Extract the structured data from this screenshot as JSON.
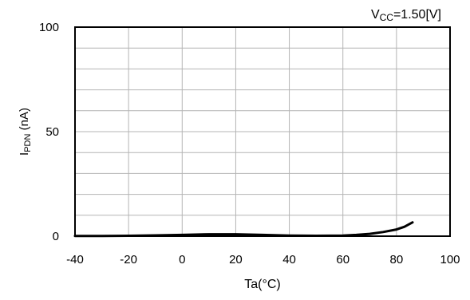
{
  "chart_data": {
    "type": "line",
    "annotation": {
      "main": "V",
      "sub": "CC",
      "rest": "=1.50[V]"
    },
    "ylabel": {
      "main": "I",
      "sub": "PDN",
      "rest": " (nA)"
    },
    "xlabel": "Ta(°C)",
    "xlim": [
      -40,
      100
    ],
    "ylim": [
      0,
      100
    ],
    "x_ticks": [
      -40,
      -20,
      0,
      20,
      40,
      60,
      80,
      100
    ],
    "x_tick_labels": [
      "-40",
      "-20",
      "0",
      "20",
      "40",
      "60",
      "80",
      "100"
    ],
    "y_tick_labels": [
      {
        "value": 0,
        "label": "0"
      },
      {
        "value": 50,
        "label": "50"
      },
      {
        "value": 100,
        "label": "100"
      }
    ],
    "y_grid": [
      10,
      20,
      30,
      40,
      50,
      60,
      70,
      80,
      90
    ],
    "grid": true,
    "series": [
      {
        "color": "#000000",
        "x": [
          -40,
          -30,
          -20,
          -10,
          0,
          10,
          20,
          30,
          40,
          50,
          60,
          65,
          70,
          75,
          80,
          83,
          86
        ],
        "y": [
          0.1,
          0.1,
          0.2,
          0.4,
          0.6,
          0.9,
          0.9,
          0.6,
          0.3,
          0.2,
          0.3,
          0.6,
          1.1,
          2.0,
          3.2,
          4.5,
          6.6
        ]
      }
    ]
  }
}
